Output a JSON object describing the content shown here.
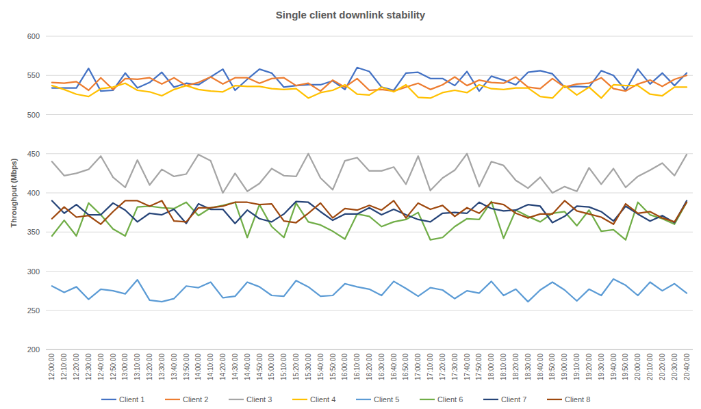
{
  "chart_data": {
    "type": "line",
    "title": "Single client downlink stability",
    "y_label": "Throughput (Mbps)",
    "categories": [
      "12:00:00",
      "12:10:00",
      "12:20:00",
      "12:30:00",
      "12:40:00",
      "12:50:00",
      "13:00:00",
      "13:10:00",
      "13:20:00",
      "13:30:00",
      "13:40:00",
      "13:50:00",
      "14:00:00",
      "14:10:00",
      "14:20:00",
      "14:30:00",
      "14:40:00",
      "14:50:00",
      "15:00:00",
      "15:10:00",
      "15:20:00",
      "15:30:00",
      "15:40:00",
      "15:50:00",
      "16:00:00",
      "16:10:00",
      "16:20:00",
      "16:30:00",
      "16:40:00",
      "16:50:00",
      "17:00:00",
      "17:10:00",
      "17:20:00",
      "17:30:00",
      "17:40:00",
      "17:50:00",
      "18:00:00",
      "18:10:00",
      "18:20:00",
      "18:30:00",
      "18:40:00",
      "18:50:00",
      "19:00:00",
      "19:10:00",
      "19:20:00",
      "19:30:00",
      "19:40:00",
      "19:50:00",
      "20:00:00",
      "20:10:00",
      "20:20:00",
      "20:30:00",
      "20:40:00"
    ],
    "series": [
      {
        "name": "Client 1",
        "color": "#4472c4",
        "values": [
          534,
          534,
          534,
          559,
          530,
          531,
          553,
          534,
          541,
          554,
          535,
          540,
          538,
          548,
          558,
          531,
          545,
          558,
          553,
          535,
          537,
          538,
          538,
          543,
          532,
          560,
          555,
          535,
          531,
          553,
          554,
          546,
          546,
          537,
          555,
          530,
          549,
          544,
          538,
          554,
          556,
          552,
          535,
          536,
          535,
          556,
          550,
          531,
          558,
          539,
          553,
          537,
          553
        ]
      },
      {
        "name": "Client 2",
        "color": "#ed7d31",
        "values": [
          541,
          540,
          542,
          531,
          547,
          532,
          546,
          545,
          547,
          539,
          547,
          537,
          541,
          548,
          539,
          547,
          547,
          540,
          546,
          547,
          537,
          540,
          530,
          544,
          535,
          546,
          531,
          532,
          530,
          535,
          540,
          532,
          538,
          548,
          537,
          544,
          541,
          540,
          548,
          535,
          533,
          546,
          535,
          539,
          540,
          547,
          533,
          530,
          539,
          544,
          536,
          545,
          550
        ]
      },
      {
        "name": "Client 3",
        "color": "#a5a5a5",
        "values": [
          440,
          422,
          425,
          430,
          447,
          420,
          407,
          442,
          410,
          430,
          421,
          424,
          449,
          441,
          400,
          425,
          402,
          412,
          431,
          422,
          421,
          450,
          419,
          404,
          441,
          445,
          428,
          428,
          433,
          411,
          447,
          403,
          419,
          429,
          450,
          408,
          440,
          435,
          416,
          406,
          420,
          400,
          408,
          402,
          432,
          411,
          431,
          407,
          421,
          429,
          438,
          422,
          449
        ]
      },
      {
        "name": "Client 4",
        "color": "#ffc000",
        "values": [
          537,
          532,
          526,
          523,
          533,
          535,
          540,
          531,
          529,
          524,
          532,
          537,
          532,
          530,
          529,
          537,
          536,
          536,
          533,
          532,
          533,
          521,
          528,
          531,
          538,
          526,
          525,
          535,
          529,
          538,
          522,
          521,
          528,
          531,
          528,
          538,
          533,
          532,
          534,
          534,
          523,
          521,
          537,
          525,
          535,
          521,
          538,
          537,
          537,
          526,
          524,
          535,
          535
        ]
      },
      {
        "name": "Client 5",
        "color": "#5b9bd5",
        "values": [
          281,
          273,
          280,
          264,
          277,
          275,
          271,
          289,
          263,
          261,
          265,
          281,
          279,
          286,
          266,
          268,
          286,
          280,
          269,
          268,
          288,
          280,
          268,
          269,
          284,
          280,
          277,
          269,
          287,
          278,
          268,
          279,
          276,
          265,
          275,
          272,
          287,
          269,
          277,
          261,
          276,
          286,
          276,
          262,
          277,
          269,
          290,
          282,
          269,
          286,
          275,
          284,
          272
        ]
      },
      {
        "name": "Client 6",
        "color": "#70ad47",
        "values": [
          345,
          365,
          345,
          387,
          372,
          354,
          345,
          382,
          383,
          381,
          380,
          388,
          371,
          381,
          384,
          388,
          343,
          385,
          357,
          343,
          387,
          363,
          359,
          351,
          341,
          373,
          370,
          357,
          363,
          366,
          375,
          340,
          343,
          357,
          367,
          366,
          389,
          342,
          378,
          370,
          363,
          374,
          376,
          358,
          378,
          351,
          353,
          340,
          388,
          372,
          367,
          360,
          388
        ]
      },
      {
        "name": "Client 7",
        "color": "#264478",
        "values": [
          390,
          374,
          385,
          372,
          372,
          387,
          378,
          363,
          374,
          372,
          379,
          361,
          386,
          379,
          379,
          361,
          378,
          367,
          363,
          373,
          389,
          388,
          376,
          365,
          373,
          373,
          381,
          372,
          379,
          372,
          366,
          363,
          374,
          375,
          374,
          388,
          380,
          377,
          378,
          385,
          383,
          362,
          370,
          383,
          382,
          376,
          364,
          383,
          373,
          364,
          371,
          362,
          390
        ]
      },
      {
        "name": "Client 8",
        "color": "#9e480e",
        "values": [
          367,
          382,
          369,
          371,
          360,
          376,
          390,
          390,
          383,
          390,
          364,
          363,
          381,
          381,
          383,
          388,
          388,
          385,
          386,
          364,
          362,
          374,
          387,
          368,
          380,
          378,
          384,
          378,
          390,
          368,
          387,
          379,
          384,
          370,
          381,
          374,
          388,
          385,
          374,
          368,
          373,
          373,
          390,
          377,
          373,
          369,
          360,
          386,
          374,
          376,
          368,
          363,
          388
        ]
      }
    ],
    "ylim": [
      200,
      600
    ],
    "yticks": [
      200,
      250,
      300,
      350,
      400,
      450,
      500,
      550,
      600
    ],
    "grid": true,
    "legend": "bottom"
  }
}
